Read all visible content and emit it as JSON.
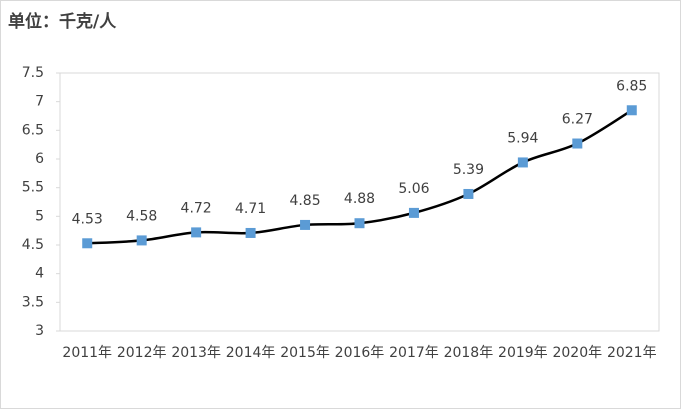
{
  "chart_data": {
    "type": "line",
    "title": "单位：千克/人",
    "categories": [
      "2011年",
      "2012年",
      "2013年",
      "2014年",
      "2015年",
      "2016年",
      "2017年",
      "2018年",
      "2019年",
      "2020年",
      "2021年"
    ],
    "series": [
      {
        "name": null,
        "color": "#000000",
        "marker_color": "#5b9bd5",
        "values": [
          4.53,
          4.58,
          4.72,
          4.71,
          4.85,
          4.88,
          5.06,
          5.39,
          5.94,
          6.27,
          6.85
        ]
      }
    ],
    "ylim": [
      3,
      7.5
    ],
    "yticks": [
      3,
      3.5,
      4,
      4.5,
      5,
      5.5,
      6,
      6.5,
      7,
      7.5
    ],
    "grid": false,
    "smooth": true
  }
}
